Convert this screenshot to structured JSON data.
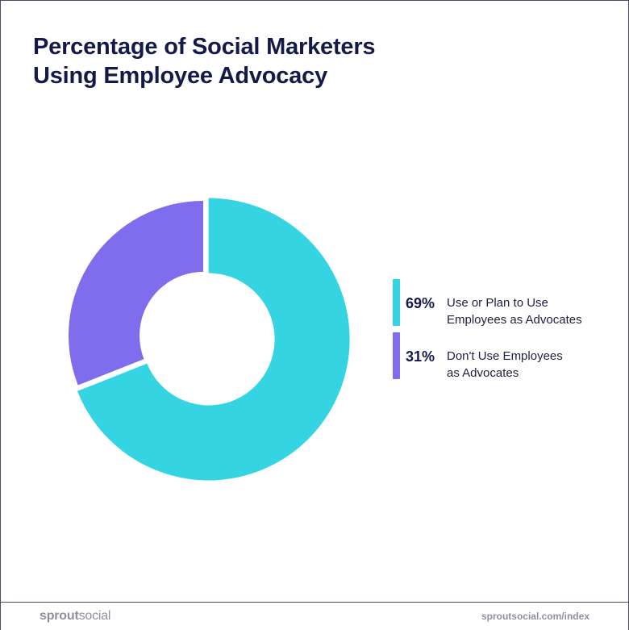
{
  "title_lines": [
    "Percentage of Social Marketers",
    "Using Employee Advocacy"
  ],
  "chart_data": {
    "type": "pie",
    "title": "Percentage of Social Marketers Using Employee Advocacy",
    "series": [
      {
        "name": "Use or Plan to Use Employees as Advocates",
        "value": 69,
        "label": "69%",
        "color": "#35d4e3",
        "label_lines": [
          "Use or Plan to Use",
          "Employees as Advocates"
        ]
      },
      {
        "name": "Don't Use Employees as Advocates",
        "value": 31,
        "label": "31%",
        "color": "#7f6ded",
        "label_lines": [
          "Don't Use Employees",
          "as Advocates"
        ]
      }
    ],
    "legend_position": "right"
  },
  "footer": {
    "brand_prefix": "sprout",
    "brand_suffix": "social",
    "url": "sproutsocial.com/index"
  }
}
